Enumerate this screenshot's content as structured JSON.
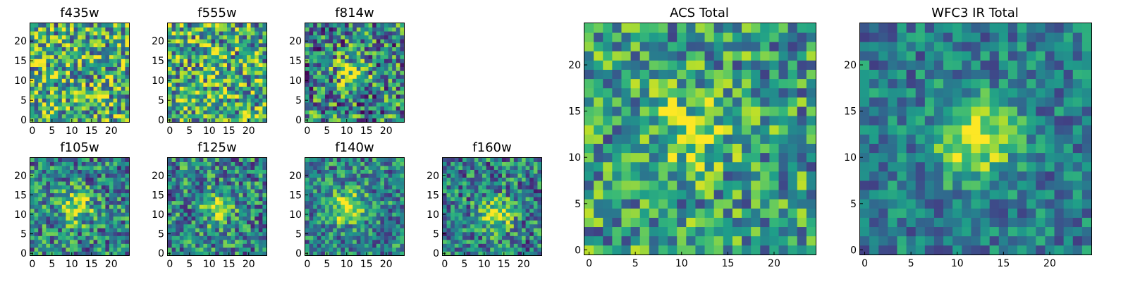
{
  "figure": {
    "colormap": "viridis",
    "panel_frame_color": "#000000"
  },
  "chart_data": [
    {
      "type": "heatmap",
      "title": "f435w",
      "grid_size": [
        25,
        25
      ],
      "xlim": [
        0,
        24
      ],
      "ylim": [
        0,
        24
      ],
      "xticks": [
        0,
        5,
        10,
        15,
        20
      ],
      "yticks": [
        0,
        5,
        10,
        15,
        20
      ],
      "origin": "lower",
      "pattern": "noise",
      "center": [
        12,
        12
      ],
      "blob_strength": 0.0,
      "noise_level": 0.55,
      "baseline": 0.62
    },
    {
      "type": "heatmap",
      "title": "f555w",
      "grid_size": [
        25,
        25
      ],
      "xlim": [
        0,
        24
      ],
      "ylim": [
        0,
        24
      ],
      "xticks": [
        0,
        5,
        10,
        15,
        20
      ],
      "yticks": [
        0,
        5,
        10,
        15,
        20
      ],
      "origin": "lower",
      "pattern": "noise",
      "center": [
        12,
        12
      ],
      "blob_strength": 0.05,
      "noise_level": 0.55,
      "baseline": 0.6
    },
    {
      "type": "heatmap",
      "title": "f814w",
      "grid_size": [
        25,
        25
      ],
      "xlim": [
        0,
        24
      ],
      "ylim": [
        0,
        24
      ],
      "xticks": [
        0,
        5,
        10,
        15,
        20
      ],
      "yticks": [
        0,
        5,
        10,
        15,
        20
      ],
      "origin": "lower",
      "pattern": "blob",
      "center": [
        11,
        12
      ],
      "blob_strength": 0.35,
      "noise_level": 0.55,
      "baseline": 0.45
    },
    {
      "type": "heatmap",
      "title": "f105w",
      "grid_size": [
        25,
        25
      ],
      "xlim": [
        0,
        24
      ],
      "ylim": [
        0,
        24
      ],
      "xticks": [
        0,
        5,
        10,
        15,
        20
      ],
      "yticks": [
        0,
        5,
        10,
        15,
        20
      ],
      "origin": "lower",
      "pattern": "blob",
      "center": [
        11,
        12
      ],
      "blob_strength": 0.45,
      "noise_level": 0.45,
      "baseline": 0.45
    },
    {
      "type": "heatmap",
      "title": "f125w",
      "grid_size": [
        25,
        25
      ],
      "xlim": [
        0,
        24
      ],
      "ylim": [
        0,
        24
      ],
      "xticks": [
        0,
        5,
        10,
        15,
        20
      ],
      "yticks": [
        0,
        5,
        10,
        15,
        20
      ],
      "origin": "lower",
      "pattern": "blob",
      "center": [
        12,
        12
      ],
      "blob_strength": 0.35,
      "noise_level": 0.45,
      "baseline": 0.45
    },
    {
      "type": "heatmap",
      "title": "f140w",
      "grid_size": [
        25,
        25
      ],
      "xlim": [
        0,
        24
      ],
      "ylim": [
        0,
        24
      ],
      "xticks": [
        0,
        5,
        10,
        15,
        20
      ],
      "yticks": [
        0,
        5,
        10,
        15,
        20
      ],
      "origin": "lower",
      "pattern": "blob",
      "center": [
        10,
        12
      ],
      "blob_strength": 0.5,
      "noise_level": 0.4,
      "baseline": 0.45
    },
    {
      "type": "heatmap",
      "title": "f160w",
      "grid_size": [
        25,
        25
      ],
      "xlim": [
        0,
        24
      ],
      "ylim": [
        0,
        24
      ],
      "xticks": [
        0,
        5,
        10,
        15,
        20
      ],
      "yticks": [
        0,
        5,
        10,
        15,
        20
      ],
      "origin": "lower",
      "pattern": "blob",
      "center": [
        13,
        10
      ],
      "blob_strength": 0.5,
      "noise_level": 0.45,
      "baseline": 0.42
    },
    {
      "type": "heatmap",
      "title": "ACS Total",
      "grid_size": [
        25,
        25
      ],
      "xlim": [
        0,
        24
      ],
      "ylim": [
        0,
        24
      ],
      "xticks": [
        0,
        5,
        10,
        15,
        20
      ],
      "yticks": [
        0,
        5,
        10,
        15,
        20
      ],
      "origin": "lower",
      "pattern": "blob",
      "center": [
        11,
        13
      ],
      "blob_strength": 0.3,
      "noise_level": 0.45,
      "baseline": 0.55
    },
    {
      "type": "heatmap",
      "title": "WFC3 IR Total",
      "grid_size": [
        25,
        25
      ],
      "xlim": [
        0,
        24
      ],
      "ylim": [
        0,
        24
      ],
      "xticks": [
        0,
        5,
        10,
        15,
        20
      ],
      "yticks": [
        0,
        5,
        10,
        15,
        20
      ],
      "origin": "lower",
      "pattern": "blob",
      "center": [
        12,
        12
      ],
      "blob_strength": 0.55,
      "noise_level": 0.3,
      "baseline": 0.42
    }
  ]
}
